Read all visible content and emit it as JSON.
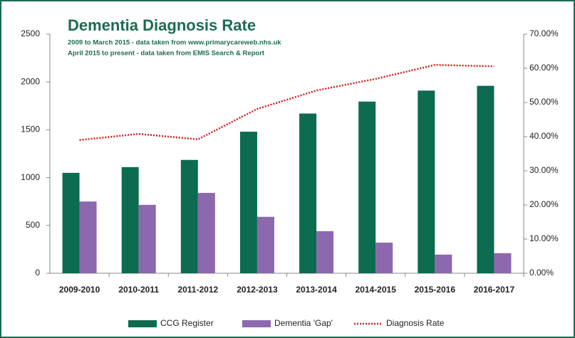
{
  "chart_data": {
    "type": "bar",
    "title": "Dementia Diagnosis Rate",
    "subtitle": [
      "2009 to March 2015 - data taken from www.primarycareweb.nhs.uk",
      "April 2015 to present - data taken from EMIS Search & Report"
    ],
    "categories": [
      "2009-2010",
      "2010-2011",
      "2011-2012",
      "2012-2013",
      "2013-2014",
      "2014-2015",
      "2015-2016",
      "2016-2017"
    ],
    "series": [
      {
        "name": "CCG Register",
        "color": "#0d6b4f",
        "values": [
          1050,
          1110,
          1185,
          1480,
          1670,
          1795,
          1910,
          1960
        ]
      },
      {
        "name": "Dementia 'Gap'",
        "color": "#8c68ae",
        "values": [
          750,
          715,
          840,
          590,
          440,
          320,
          195,
          210
        ]
      },
      {
        "name": "Diagnosis Rate",
        "color": "#cc1f1f",
        "type": "line",
        "axis": "y2",
        "values": [
          39,
          40.8,
          39.2,
          48.1,
          53.5,
          56.9,
          61,
          60.6
        ]
      }
    ],
    "ylim": [
      0,
      2500
    ],
    "yticks": [
      0,
      500,
      1000,
      1500,
      2000,
      2500
    ],
    "y2lim": [
      0,
      70
    ],
    "y2ticks": [
      {
        "value": 0,
        "label": "0.00%"
      },
      {
        "value": 10,
        "label": "10.00%"
      },
      {
        "value": 20,
        "label": "20.00%"
      },
      {
        "value": 30,
        "label": "30.00%"
      },
      {
        "value": 40,
        "label": "40.00%"
      },
      {
        "value": 50,
        "label": "50.00%"
      },
      {
        "value": 60,
        "label": "60.00%"
      },
      {
        "value": 70,
        "label": "70.00%"
      }
    ],
    "grid": false
  }
}
